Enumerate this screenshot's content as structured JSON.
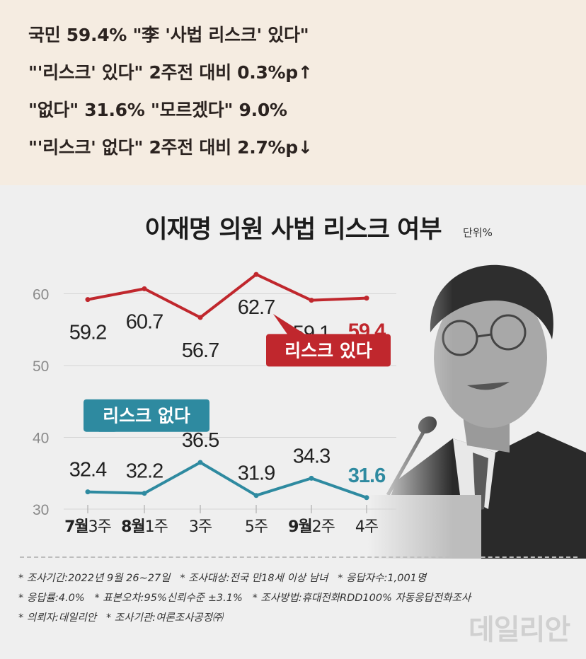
{
  "headline": {
    "lines": [
      "국민 59.4% \"李 '사법 리스크' 있다\"",
      "\"'리스크' 있다\" 2주전 대비 0.3%p↑",
      "\"없다\" 31.6% \"모르겠다\" 9.0%",
      "\"'리스크' 없다\" 2주전 대비 2.7%p↓"
    ]
  },
  "chart_data": {
    "type": "line",
    "title": "이재명 의원 사법 리스크 여부",
    "unit": "단위%",
    "categories": [
      {
        "month": "7월",
        "week": "3주"
      },
      {
        "month": "8월",
        "week": "1주"
      },
      {
        "month": "",
        "week": "3주"
      },
      {
        "month": "",
        "week": "5주"
      },
      {
        "month": "9월",
        "week": "2주"
      },
      {
        "month": "",
        "week": "4주"
      }
    ],
    "y_ticks": [
      30,
      40,
      50,
      60
    ],
    "series": [
      {
        "name": "리스크 있다",
        "values": [
          59.2,
          60.7,
          56.7,
          62.7,
          59.1,
          59.4
        ],
        "labels": [
          "59.2",
          "60.7",
          "56.7",
          "62.7",
          "59.1",
          "59.4"
        ],
        "color": "#c0272d"
      },
      {
        "name": "리스크 없다",
        "values": [
          32.4,
          32.2,
          36.5,
          31.9,
          34.3,
          31.6
        ],
        "labels": [
          "32.4",
          "32.2",
          "36.5",
          "31.9",
          "34.3",
          "31.6"
        ],
        "color": "#2e8aa0"
      }
    ]
  },
  "notes": [
    [
      "* 조사기간:2022년 9월 26~27일",
      "* 조사대상:전국 만18세 이상 남녀",
      "* 응답자수:1,001명"
    ],
    [
      "* 응답률:4.0%",
      "* 표본오차:95%신뢰수준 ±3.1%",
      "* 조사방법:휴대전화RDD100% 자동응답전화조사"
    ],
    [
      "* 의뢰자:데일리안",
      "* 조사기관:여론조사공정㈜"
    ]
  ],
  "watermark": "데일리안",
  "colors": {
    "headline_bg": "#f5ece1",
    "panel_bg": "#efefef",
    "accent_red": "#c0272d",
    "accent_teal": "#2e8aa0"
  }
}
